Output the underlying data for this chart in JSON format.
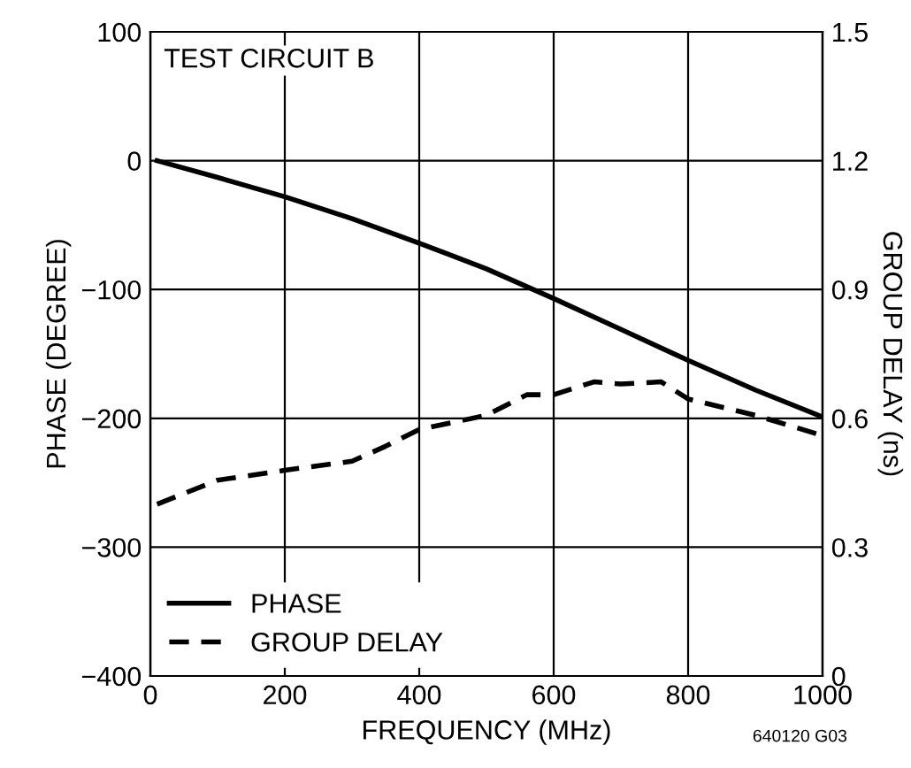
{
  "chart_data": {
    "type": "line",
    "title": "TEST CIRCUIT B",
    "xlabel": "FREQUENCY (MHz)",
    "ylabel": "PHASE (DEGREE)",
    "y2label": "GROUP DELAY (ns)",
    "series": [
      {
        "name": "PHASE",
        "color": "#000000",
        "line_style": "solid",
        "x": [
          10,
          100,
          200,
          300,
          400,
          500,
          600,
          700,
          800,
          900,
          1000
        ],
        "values": [
          0,
          -13,
          -28,
          -45,
          -64,
          -84,
          -107,
          -131,
          -155,
          -178,
          -199
        ]
      },
      {
        "name": "GROUP DELAY",
        "color": "#000000",
        "line_style": "dashed",
        "axis": "y2",
        "x": [
          10,
          100,
          200,
          300,
          350,
          400,
          500,
          560,
          600,
          660,
          700,
          760,
          800,
          900,
          1000
        ],
        "values": [
          0.4,
          0.456,
          0.479,
          0.5,
          0.535,
          0.574,
          0.607,
          0.655,
          0.655,
          0.685,
          0.68,
          0.685,
          0.645,
          0.607,
          0.56
        ]
      }
    ],
    "xlim": [
      0,
      1000
    ],
    "xticks": [
      0,
      200,
      400,
      600,
      800,
      1000
    ],
    "ylim": [
      -400,
      100
    ],
    "yticks": [
      -400,
      -300,
      -200,
      -100,
      0,
      100
    ],
    "y2lim": [
      0,
      1.5
    ],
    "y2ticks": [
      0,
      0.3,
      0.6,
      0.9,
      1.2,
      1.5
    ],
    "grid": true,
    "legend": "bottom left",
    "annotations": [
      "640120 G03"
    ]
  }
}
